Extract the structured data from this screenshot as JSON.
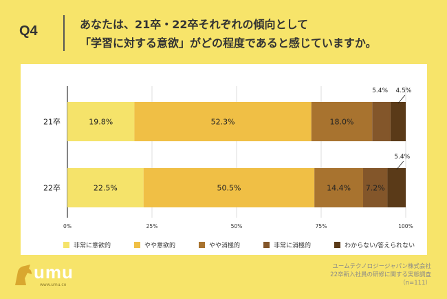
{
  "header": {
    "q_label": "Q4",
    "question_line1": "あなたは、21卒・22卒それぞれの傾向として",
    "question_line2": "「学習に対する意欲」がどの程度であると感じていますか。"
  },
  "chart_data": {
    "type": "bar",
    "orientation": "horizontal",
    "stacked": true,
    "categories": [
      "21卒",
      "22卒"
    ],
    "series": [
      {
        "name": "非常に意欲的",
        "color": "#f5e36a",
        "values": [
          19.8,
          22.5
        ],
        "labels": [
          "19.8%",
          "22.5%"
        ]
      },
      {
        "name": "やや意欲的",
        "color": "#f0bf45",
        "values": [
          52.3,
          50.5
        ],
        "labels": [
          "52.3%",
          "50.5%"
        ]
      },
      {
        "name": "やや消極的",
        "color": "#a8732f",
        "values": [
          18.0,
          14.4
        ],
        "labels": [
          "18.0%",
          "14.4%"
        ]
      },
      {
        "name": "非常に消極的",
        "color": "#83562a",
        "values": [
          5.4,
          7.2
        ],
        "labels": [
          "5.4%",
          "7.2%"
        ]
      },
      {
        "name": "わからない/答えられない",
        "color": "#5a3a18",
        "values": [
          4.5,
          5.4
        ],
        "labels": [
          "4.5%",
          "5.4%"
        ]
      }
    ],
    "xlim": [
      0,
      100
    ],
    "x_ticks": [
      "0%",
      "25%",
      "50%",
      "75%",
      "100%"
    ],
    "legend_position": "bottom"
  },
  "logo": {
    "name": "umu",
    "url": "www.umu.co"
  },
  "source": {
    "line1": "ユームテクノロジージャパン株式会社",
    "line2": "22卒新入社員の研修に関する実態調査",
    "line3": "（n=111）"
  }
}
